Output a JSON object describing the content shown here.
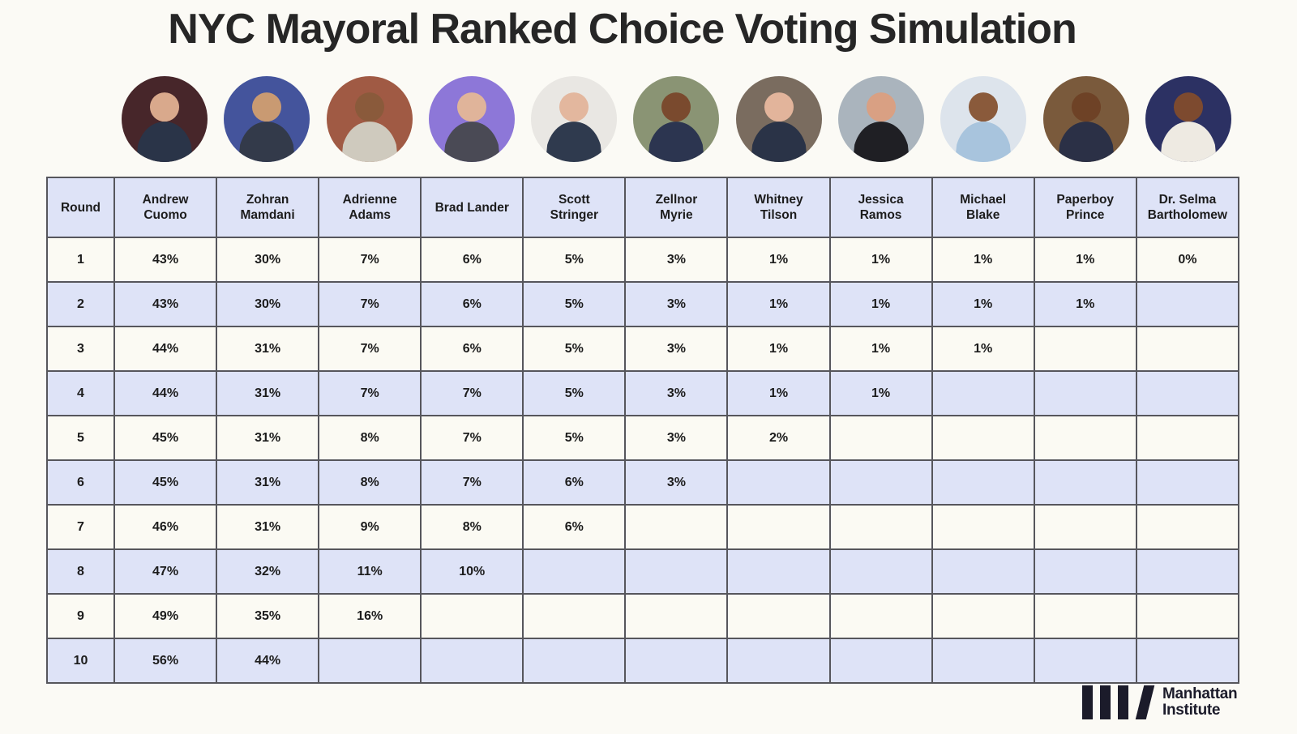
{
  "page": {
    "title": "NYC Mayoral Ranked Choice Voting Simulation",
    "background_color": "#fbfaf5"
  },
  "candidates": [
    {
      "name": "Andrew Cuomo",
      "header_lines": "Andrew\nCuomo",
      "avatar": "andrew-cuomo-portrait",
      "avatar_bg": "#47262a",
      "suit": "#2a3448",
      "skin": "#d9a98c"
    },
    {
      "name": "Zohran Mamdani",
      "header_lines": "Zohran\nMamdani",
      "avatar": "zohran-mamdani-portrait",
      "avatar_bg": "#44549c",
      "suit": "#333a4a",
      "skin": "#c99a72"
    },
    {
      "name": "Adrienne Adams",
      "header_lines": "Adrienne\nAdams",
      "avatar": "adrienne-adams-portrait",
      "avatar_bg": "#a05a44",
      "suit": "#cfcabe",
      "skin": "#8a5a3b"
    },
    {
      "name": "Brad Lander",
      "header_lines": "Brad Lander",
      "avatar": "brad-lander-portrait",
      "avatar_bg": "#8d77d8",
      "suit": "#4a4a55",
      "skin": "#e0b49a"
    },
    {
      "name": "Scott Stringer",
      "header_lines": "Scott\nStringer",
      "avatar": "scott-stringer-portrait",
      "avatar_bg": "#e9e7e3",
      "suit": "#2f3a4e",
      "skin": "#e3b79e"
    },
    {
      "name": "Zellnor Myrie",
      "header_lines": "Zellnor\nMyrie",
      "avatar": "zellnor-myrie-portrait",
      "avatar_bg": "#8a9474",
      "suit": "#2c3550",
      "skin": "#7a4a2e"
    },
    {
      "name": "Whitney Tilson",
      "header_lines": "Whitney\nTilson",
      "avatar": "whitney-tilson-portrait",
      "avatar_bg": "#7a6c5f",
      "suit": "#2a3347",
      "skin": "#e2b49b"
    },
    {
      "name": "Jessica Ramos",
      "header_lines": "Jessica\nRamos",
      "avatar": "jessica-ramos-portrait",
      "avatar_bg": "#aab4bd",
      "suit": "#1f1f24",
      "skin": "#d9a083"
    },
    {
      "name": "Michael Blake",
      "header_lines": "Michael\nBlake",
      "avatar": "michael-blake-portrait",
      "avatar_bg": "#dde4ec",
      "suit": "#a8c4dd",
      "skin": "#8a5a3b"
    },
    {
      "name": "Paperboy Prince",
      "header_lines": "Paperboy\nPrince",
      "avatar": "paperboy-prince-portrait",
      "avatar_bg": "#7a5a3c",
      "suit": "#2b3046",
      "skin": "#6e4226"
    },
    {
      "name": "Dr. Selma Bartholomew",
      "header_lines": "Dr. Selma\nBartholomew",
      "avatar": "selma-bartholomew-portrait",
      "avatar_bg": "#2c3163",
      "suit": "#eeeae2",
      "skin": "#7d4a2f"
    }
  ],
  "chart_data": {
    "type": "table",
    "title": "NYC Mayoral Ranked Choice Voting Simulation",
    "columns": [
      "Round",
      "Andrew Cuomo",
      "Zohran Mamdani",
      "Adrienne Adams",
      "Brad Lander",
      "Scott Stringer",
      "Zellnor Myrie",
      "Whitney Tilson",
      "Jessica Ramos",
      "Michael Blake",
      "Paperboy Prince",
      "Dr. Selma Bartholomew"
    ],
    "rows": [
      [
        "1",
        "43%",
        "30%",
        "7%",
        "6%",
        "5%",
        "3%",
        "1%",
        "1%",
        "1%",
        "1%",
        "0%"
      ],
      [
        "2",
        "43%",
        "30%",
        "7%",
        "6%",
        "5%",
        "3%",
        "1%",
        "1%",
        "1%",
        "1%",
        ""
      ],
      [
        "3",
        "44%",
        "31%",
        "7%",
        "6%",
        "5%",
        "3%",
        "1%",
        "1%",
        "1%",
        "",
        ""
      ],
      [
        "4",
        "44%",
        "31%",
        "7%",
        "7%",
        "5%",
        "3%",
        "1%",
        "1%",
        "",
        "",
        ""
      ],
      [
        "5",
        "45%",
        "31%",
        "8%",
        "7%",
        "5%",
        "3%",
        "2%",
        "",
        "",
        "",
        ""
      ],
      [
        "6",
        "45%",
        "31%",
        "8%",
        "7%",
        "6%",
        "3%",
        "",
        "",
        "",
        "",
        ""
      ],
      [
        "7",
        "46%",
        "31%",
        "9%",
        "8%",
        "6%",
        "",
        "",
        "",
        "",
        "",
        ""
      ],
      [
        "8",
        "47%",
        "32%",
        "11%",
        "10%",
        "",
        "",
        "",
        "",
        "",
        "",
        ""
      ],
      [
        "9",
        "49%",
        "35%",
        "16%",
        "",
        "",
        "",
        "",
        "",
        "",
        "",
        ""
      ],
      [
        "10",
        "56%",
        "44%",
        "",
        "",
        "",
        "",
        "",
        "",
        "",
        "",
        ""
      ]
    ],
    "layout": {
      "header_bg": "#dee3f7",
      "row_bg": "#fbfaf3",
      "row_alt_bg": "#dee3f7",
      "border_color": "#56565c",
      "alternating_rows": true
    }
  },
  "footer": {
    "org_line1": "Manhattan",
    "org_line2": "Institute",
    "logo_color": "#1b1b2a"
  }
}
